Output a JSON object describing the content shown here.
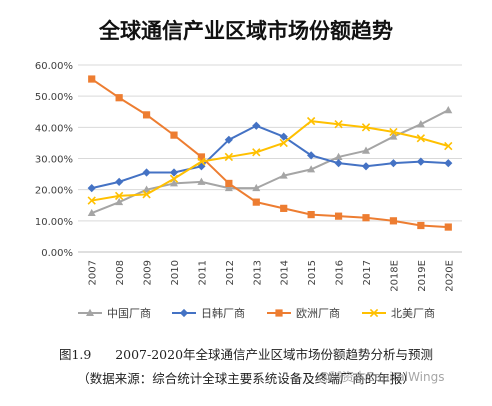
{
  "chart_data": {
    "type": "line",
    "title": "全球通信产业区域市场份额趋势",
    "x": [
      "2007",
      "2008",
      "2009",
      "2010",
      "2011",
      "2012",
      "2013",
      "2014",
      "2015",
      "2016",
      "2017",
      "2018E",
      "2019E",
      "2020E"
    ],
    "yticks": [
      "0.00%",
      "10.00%",
      "20.00%",
      "30.00%",
      "40.00%",
      "50.00%",
      "60.00%"
    ],
    "ylim": [
      0,
      60
    ],
    "grid": true,
    "legend_position": "bottom",
    "series": [
      {
        "name": "中国厂商",
        "color": "#a5a5a5",
        "marker": "triangle",
        "values": [
          12.5,
          16,
          20,
          22,
          22.5,
          20.5,
          20.5,
          24.5,
          26.5,
          30.5,
          32.5,
          37,
          41,
          45.5
        ]
      },
      {
        "name": "日韩厂商",
        "color": "#4472c4",
        "marker": "diamond",
        "values": [
          20.5,
          22.5,
          25.5,
          25.5,
          27.5,
          36,
          40.5,
          37,
          31,
          28.5,
          27.5,
          28.5,
          29,
          28.5
        ]
      },
      {
        "name": "欧洲厂商",
        "color": "#ed7d31",
        "marker": "square",
        "values": [
          55.5,
          49.5,
          44,
          37.5,
          30.5,
          22,
          16,
          14,
          12,
          11.5,
          11,
          10,
          8.5,
          8
        ]
      },
      {
        "name": "北美厂商",
        "color": "#ffc000",
        "marker": "x",
        "values": [
          16.5,
          18,
          18.5,
          23.5,
          29,
          30.5,
          32,
          35,
          42,
          41,
          40,
          38.5,
          36.5,
          34
        ]
      }
    ]
  },
  "caption": {
    "figure_number": "图1.9",
    "figure_title": "2007-2020年全球通信产业区域市场份额趋势分析与预测",
    "source_line": "（数据来源：综合统计全球主要系统设备及终端厂商的年报）"
  },
  "watermark": "@碱资本CapitalWings"
}
